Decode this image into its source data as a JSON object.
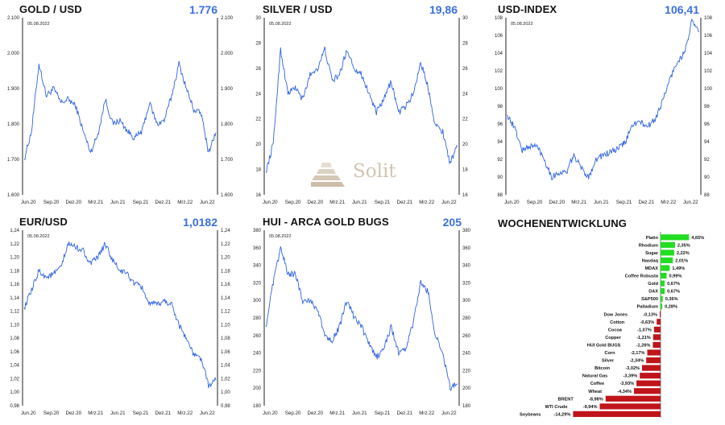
{
  "colors": {
    "line": "#2f63e0",
    "value": "#3b6fe0",
    "positive": "#22dd22",
    "negative": "#c0141b",
    "axis": "#222222"
  },
  "watermark": {
    "text": "Solit"
  },
  "charts": [
    {
      "id": "gold",
      "title": "GOLD / USD",
      "value": "1.776",
      "date": "05.08.2022",
      "yticks": [
        "1.600",
        "1.700",
        "1.800",
        "1.900",
        "2.000",
        "2.100"
      ],
      "xticks": [
        "Jun.20",
        "Sep.20",
        "Dez.20",
        "Mrz.21",
        "Jun.21",
        "Sep.21",
        "Dez.21",
        "Mrz.22",
        "Jun.22"
      ]
    },
    {
      "id": "silver",
      "title": "SILVER / USD",
      "value": "19,86",
      "date": "05.08.2022",
      "yticks": [
        "16",
        "18",
        "20",
        "22",
        "24",
        "26",
        "28",
        "30"
      ],
      "xticks": [
        "Jun.20",
        "Sep.20",
        "Dez.20",
        "Mrz.21",
        "Jun.21",
        "Sep.21",
        "Dez.21",
        "Mrz.22",
        "Jun.22"
      ]
    },
    {
      "id": "usd",
      "title": "USD-INDEX",
      "value": "106,41",
      "date": "05.08.2022",
      "yticks": [
        "88",
        "90",
        "92",
        "94",
        "96",
        "98",
        "100",
        "102",
        "104",
        "106",
        "108"
      ],
      "xticks": [
        "Jun.20",
        "Sep.20",
        "Dez.20",
        "Mrz.21",
        "Jun.21",
        "Sep.21",
        "Dez.21",
        "Mrz.22",
        "Jun.22"
      ]
    },
    {
      "id": "eur",
      "title": "EUR/USD",
      "value": "1,0182",
      "date": "05.08.2022",
      "yticks": [
        "0,98",
        "1,00",
        "1,02",
        "1,04",
        "1,06",
        "1,08",
        "1,10",
        "1,12",
        "1,14",
        "1,16",
        "1,18",
        "1,20",
        "1,22",
        "1,24"
      ],
      "xticks": [
        "Jun.20",
        "Sep.20",
        "Dez.20",
        "Mrz.21",
        "Jun.21",
        "Sep.21",
        "Dez.21",
        "Mrz.22",
        "Jun.22"
      ]
    },
    {
      "id": "hui",
      "title": "HUI - ARCA GOLD BUGS",
      "value": "205",
      "date": "05.08.2022",
      "yticks": [
        "180",
        "200",
        "220",
        "240",
        "260",
        "280",
        "300",
        "320",
        "340",
        "360",
        "380"
      ],
      "xticks": [
        "Jun.20",
        "Sep.20",
        "Dez.20",
        "Mrz.21",
        "Jun.21",
        "Sep.21",
        "Dez.21",
        "Mrz.22",
        "Jun.22"
      ]
    }
  ],
  "chart_data": [
    {
      "type": "line",
      "title": "GOLD / USD",
      "ylim": [
        1600,
        2100
      ],
      "x": [
        "Jun.20",
        "Jul.20",
        "Aug.20",
        "Sep.20",
        "Okt.20",
        "Nov.20",
        "Dez.20",
        "Jan.21",
        "Feb.21",
        "Mrz.21",
        "Apr.21",
        "Mai.21",
        "Jun.21",
        "Jul.21",
        "Aug.21",
        "Sep.21",
        "Okt.21",
        "Nov.21",
        "Dez.21",
        "Jan.22",
        "Feb.22",
        "Mrz.22",
        "Apr.22",
        "Mai.22",
        "Jun.22",
        "Jul.22",
        "Aug.22"
      ],
      "series": [
        {
          "values": [
            1700,
            1780,
            1970,
            1880,
            1900,
            1860,
            1870,
            1850,
            1780,
            1720,
            1770,
            1870,
            1800,
            1810,
            1780,
            1760,
            1780,
            1860,
            1800,
            1810,
            1880,
            1970,
            1900,
            1840,
            1830,
            1720,
            1776
          ]
        }
      ]
    },
    {
      "type": "line",
      "title": "SILVER / USD",
      "ylim": [
        16,
        30
      ],
      "x": [
        "Jun.20",
        "Jul.20",
        "Aug.20",
        "Sep.20",
        "Okt.20",
        "Nov.20",
        "Dez.20",
        "Jan.21",
        "Feb.21",
        "Mrz.21",
        "Apr.21",
        "Mai.21",
        "Jun.21",
        "Jul.21",
        "Aug.21",
        "Sep.21",
        "Okt.21",
        "Nov.21",
        "Dez.21",
        "Jan.22",
        "Feb.22",
        "Mrz.22",
        "Apr.22",
        "Mai.22",
        "Jun.22",
        "Jul.22",
        "Aug.22"
      ],
      "series": [
        {
          "values": [
            17.8,
            20,
            27.5,
            24,
            24.5,
            23.5,
            25.5,
            26,
            27.5,
            25,
            25.5,
            27.5,
            26,
            25.5,
            24,
            22.5,
            23.5,
            25,
            22.5,
            23,
            24,
            26.5,
            24.5,
            21.5,
            21,
            18.5,
            19.86
          ]
        }
      ]
    },
    {
      "type": "line",
      "title": "USD-INDEX",
      "ylim": [
        88,
        108
      ],
      "x": [
        "Jun.20",
        "Jul.20",
        "Aug.20",
        "Sep.20",
        "Okt.20",
        "Nov.20",
        "Dez.20",
        "Jan.21",
        "Feb.21",
        "Mrz.21",
        "Apr.21",
        "Mai.21",
        "Jun.21",
        "Jul.21",
        "Aug.21",
        "Sep.21",
        "Okt.21",
        "Nov.21",
        "Dez.21",
        "Jan.22",
        "Feb.22",
        "Mrz.22",
        "Apr.22",
        "Mai.22",
        "Jun.22",
        "Jul.22",
        "Aug.22"
      ],
      "series": [
        {
          "values": [
            97,
            95.5,
            93,
            93.5,
            93.5,
            92,
            90,
            90.5,
            90.5,
            92.5,
            91,
            90,
            92,
            92.5,
            92.8,
            93.2,
            94,
            96,
            96.2,
            95.7,
            96.5,
            98.5,
            101,
            103,
            104,
            107.5,
            106.41
          ]
        }
      ]
    },
    {
      "type": "line",
      "title": "EUR/USD",
      "ylim": [
        0.98,
        1.24
      ],
      "x": [
        "Jun.20",
        "Jul.20",
        "Aug.20",
        "Sep.20",
        "Okt.20",
        "Nov.20",
        "Dez.20",
        "Jan.21",
        "Feb.21",
        "Mrz.21",
        "Apr.21",
        "Mai.21",
        "Jun.21",
        "Jul.21",
        "Aug.21",
        "Sep.21",
        "Okt.21",
        "Nov.21",
        "Dez.21",
        "Jan.22",
        "Feb.22",
        "Mrz.22",
        "Apr.22",
        "Mai.22",
        "Jun.22",
        "Jul.22",
        "Aug.22"
      ],
      "series": [
        {
          "values": [
            1.125,
            1.15,
            1.18,
            1.17,
            1.175,
            1.185,
            1.22,
            1.215,
            1.21,
            1.19,
            1.2,
            1.22,
            1.195,
            1.18,
            1.175,
            1.16,
            1.155,
            1.13,
            1.13,
            1.135,
            1.13,
            1.1,
            1.08,
            1.055,
            1.05,
            1.01,
            1.0182
          ]
        }
      ]
    },
    {
      "type": "line",
      "title": "HUI - ARCA GOLD BUGS",
      "ylim": [
        180,
        380
      ],
      "x": [
        "Jun.20",
        "Jul.20",
        "Aug.20",
        "Sep.20",
        "Okt.20",
        "Nov.20",
        "Dez.20",
        "Jan.21",
        "Feb.21",
        "Mrz.21",
        "Apr.21",
        "Mai.21",
        "Jun.21",
        "Jul.21",
        "Aug.21",
        "Sep.21",
        "Okt.21",
        "Nov.21",
        "Dez.21",
        "Jan.22",
        "Feb.22",
        "Mrz.22",
        "Apr.22",
        "Mai.22",
        "Jun.22",
        "Jul.22",
        "Aug.22"
      ],
      "series": [
        {
          "values": [
            270,
            320,
            360,
            330,
            330,
            300,
            300,
            290,
            260,
            255,
            270,
            300,
            280,
            270,
            250,
            235,
            245,
            270,
            240,
            245,
            275,
            320,
            310,
            260,
            240,
            200,
            205
          ]
        }
      ]
    },
    {
      "type": "bar",
      "title": "WOCHENENTWICKLUNG",
      "orientation": "horizontal",
      "categories": [
        "Platin",
        "Rhodium",
        "Sugar",
        "Nasdaq",
        "MDAX",
        "Coffee Robusta",
        "Gold",
        "DAX",
        "S&P500",
        "Palladium",
        "Dow Jones",
        "Cotton",
        "Cocoa",
        "Copper",
        "HUI Gold BUGS",
        "Corn",
        "Silver",
        "Bitcoin",
        "Natural Gas",
        "Coffee",
        "Wheat",
        "BRENT",
        "WTI Crude",
        "Soybeans"
      ],
      "values": [
        4.65,
        2.35,
        2.22,
        2.01,
        1.49,
        0.99,
        0.67,
        0.67,
        0.36,
        0.28,
        -0.13,
        -0.63,
        -1.07,
        -1.21,
        -1.26,
        -2.17,
        -2.34,
        -3.02,
        -3.39,
        -3.93,
        -4.34,
        -8.98,
        -9.94,
        -14.29
      ],
      "labels": [
        "4,65%",
        "2,35%",
        "2,22%",
        "2,01%",
        "1,49%",
        "0,99%",
        "0,67%",
        "0,67%",
        "0,36%",
        "0,28%",
        "-0,13%",
        "-0,63%",
        "-1,07%",
        "-1,21%",
        "-1,26%",
        "-2,17%",
        "-2,34%",
        "-3,02%",
        "-3,39%",
        "-3,93%",
        "-4,34%",
        "-8,98%",
        "-9,94%",
        "-14,29%"
      ]
    }
  ]
}
